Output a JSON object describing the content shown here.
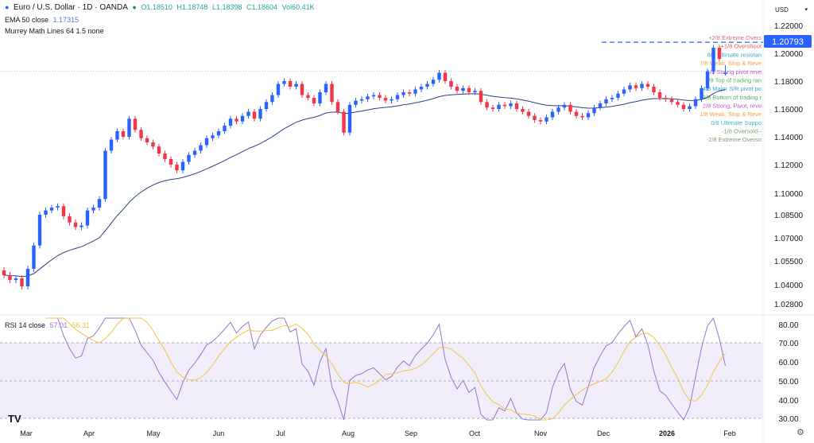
{
  "header": {
    "symbol": "Euro / U.S. Dollar · 1D · OANDA",
    "open": "O1.18510",
    "high": "H1.18748",
    "low": "L1.18398",
    "close": "C1.18604",
    "volume": "Vol60.41K",
    "ema_label": "EMA 50 close",
    "ema_value": "1.17315",
    "murrey_label": "Murrey Math Lines 64 1.5 none",
    "rsi_label": "RSI 14 close",
    "rsi_value": "57.01",
    "rsi_ma_value": "56.31"
  },
  "currency_selector": "USD",
  "last_price_label": "1.20793",
  "colors": {
    "up": "#2962ff",
    "down": "#f23645",
    "ema": "#2a3f8f",
    "rsi": "#9575cd",
    "rsi_ma": "#f5c342",
    "rsi_band": "#f1edfb",
    "price_label": "#2962ff"
  },
  "chart_data": {
    "type": "candlestick",
    "title": "Euro / U.S. Dollar · 1D · OANDA",
    "price_axis_ticks": [
      "1.22000",
      "1.20000",
      "1.18000",
      "1.16000",
      "1.14000",
      "1.12000",
      "1.10000",
      "1.08500",
      "1.07000",
      "1.05500",
      "1.04000",
      "1.02800"
    ],
    "rsi_axis_ticks": [
      "80.00",
      "70.00",
      "60.00",
      "50.00",
      "40.00",
      "30.00"
    ],
    "x_tick_labels": [
      "Mar",
      "Apr",
      "May",
      "Jun",
      "Jul",
      "Aug",
      "Sep",
      "Oct",
      "Nov",
      "Dec",
      "2026",
      "Feb"
    ],
    "ylim": [
      1.028,
      1.22
    ],
    "grid": false,
    "closes": [
      1.046,
      1.043,
      1.044,
      1.039,
      1.05,
      1.065,
      1.085,
      1.088,
      1.09,
      1.091,
      1.084,
      1.08,
      1.077,
      1.078,
      1.088,
      1.09,
      1.096,
      1.13,
      1.138,
      1.144,
      1.14,
      1.153,
      1.145,
      1.139,
      1.136,
      1.133,
      1.128,
      1.124,
      1.12,
      1.116,
      1.122,
      1.127,
      1.13,
      1.134,
      1.139,
      1.141,
      1.144,
      1.148,
      1.153,
      1.151,
      1.155,
      1.158,
      1.153,
      1.16,
      1.165,
      1.17,
      1.178,
      1.18,
      1.176,
      1.178,
      1.17,
      1.168,
      1.164,
      1.172,
      1.178,
      1.165,
      1.158,
      1.143,
      1.163,
      1.166,
      1.167,
      1.169,
      1.17,
      1.168,
      1.166,
      1.167,
      1.17,
      1.172,
      1.171,
      1.174,
      1.176,
      1.178,
      1.181,
      1.186,
      1.18,
      1.176,
      1.173,
      1.175,
      1.172,
      1.173,
      1.165,
      1.161,
      1.16,
      1.163,
      1.162,
      1.164,
      1.16,
      1.158,
      1.155,
      1.152,
      1.151,
      1.154,
      1.158,
      1.161,
      1.163,
      1.158,
      1.155,
      1.154,
      1.157,
      1.161,
      1.164,
      1.167,
      1.168,
      1.171,
      1.174,
      1.177,
      1.175,
      1.178,
      1.176,
      1.172,
      1.168,
      1.167,
      1.165,
      1.163,
      1.16,
      1.162,
      1.167,
      1.175,
      1.187,
      1.204,
      1.196,
      1.18604
    ],
    "last_open": 1.1851,
    "last_high": 1.18748,
    "last_low": 1.18398,
    "reference_level": 1.20793,
    "murrey_levels": [
      {
        "label": "+2/8 Extreme Overs",
        "value": 1.2114,
        "color": "#e06c75"
      },
      {
        "label": "+1/8 Overshoot",
        "value": 1.2053,
        "color": "#e35d5d"
      },
      {
        "label": "8/8 Ultimate resistan",
        "value": 1.1992,
        "color": "#3fa7c7"
      },
      {
        "label": "7/8 Weak, Stop & Reve",
        "value": 1.1931,
        "color": "#f0a23a"
      },
      {
        "label": "6/8 Strong pivot reve",
        "value": 1.187,
        "color": "#b55bd6"
      },
      {
        "label": "5/8 Top of trading ran",
        "value": 1.1809,
        "color": "#5fae5f"
      },
      {
        "label": "4/8 Major S/R pivot po",
        "value": 1.1748,
        "color": "#3fa7c7"
      },
      {
        "label": "3/8 Bottom of trading r",
        "value": 1.1687,
        "color": "#5fae5f"
      },
      {
        "label": "2/8 Strong, Pivot, reve",
        "value": 1.1626,
        "color": "#b55bd6"
      },
      {
        "label": "1/8 Weak, Stop & Reve",
        "value": 1.1565,
        "color": "#f0a23a"
      },
      {
        "label": "0/8 Ultimate Suppo",
        "value": 1.1504,
        "color": "#3fb4d0"
      },
      {
        "label": "-1/8 Oversold--",
        "value": 1.1443,
        "color": "#7fa36a"
      },
      {
        "label": "-2/8 Extreme Overso",
        "value": 1.1382,
        "color": "#7fa36a"
      }
    ]
  }
}
